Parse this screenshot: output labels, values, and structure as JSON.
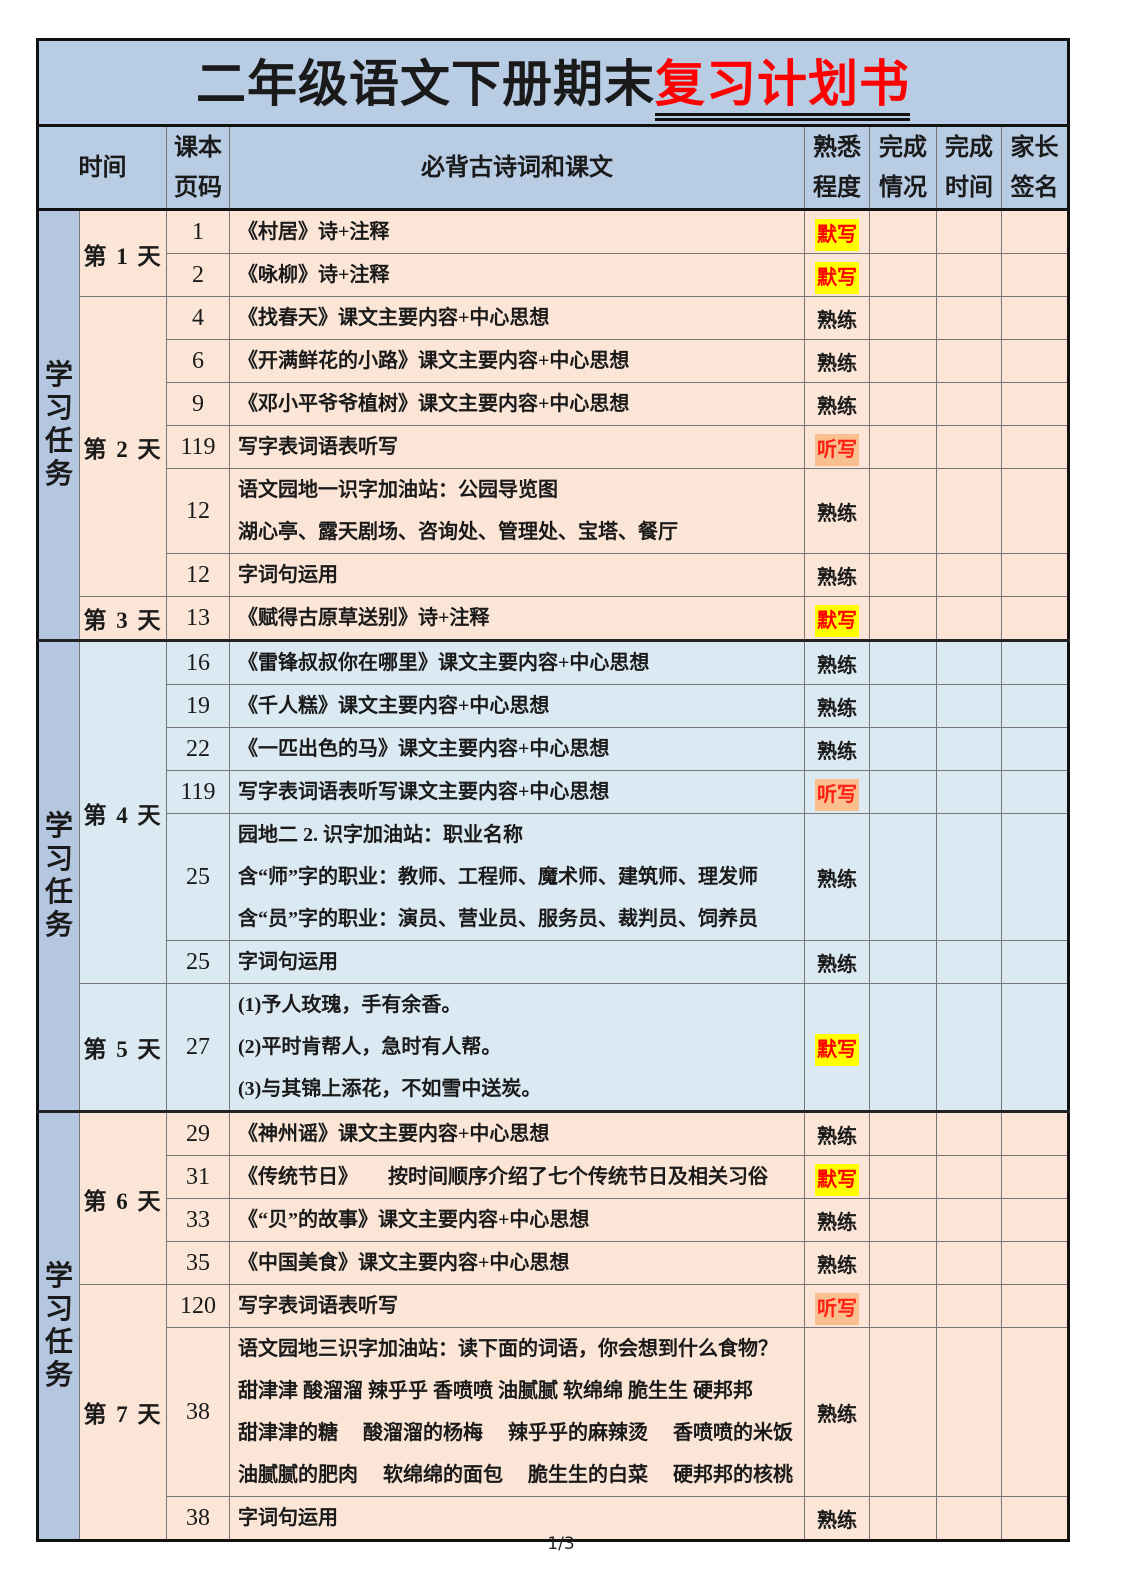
{
  "title": {
    "black": "二年级语文下册期末",
    "red": "复习计划书"
  },
  "header": {
    "time": "时间",
    "book_page": "课本\n页码",
    "content": "必背古诗词和课文",
    "familiarity": "熟悉\n程度",
    "completion": "完成\n情况",
    "finish_time": "完成\n时间",
    "parent_sign": "家长\n签名"
  },
  "side_label": "学习任务",
  "footer": {
    "page_number": "1/3"
  },
  "colors": {
    "header_blue": "#b8cce4",
    "side_blue": "#b5c7e0",
    "row_peach": "#fbe5d6",
    "row_blue": "#dbe9f2",
    "highlight_yellow": "#ffff00",
    "highlight_orange": "#fabf8f",
    "accent_red": "#ff0000",
    "title_red": "#ff0000"
  },
  "sections": [
    {
      "theme": "peach",
      "groups": [
        {
          "day": "第 1 天",
          "rows": [
            {
              "page": "1",
              "lines": [
                "《村居》诗+注释"
              ],
              "status": "默写",
              "status_style": "yellow"
            },
            {
              "page": "2",
              "lines": [
                "《咏柳》诗+注释"
              ],
              "status": "默写",
              "status_style": "yellow"
            }
          ]
        },
        {
          "day": "第 2 天",
          "rows": [
            {
              "page": "4",
              "lines": [
                "《找春天》课文主要内容+中心思想"
              ],
              "status": "熟练",
              "status_style": "plain"
            },
            {
              "page": "6",
              "lines": [
                "《开满鲜花的小路》课文主要内容+中心思想"
              ],
              "status": "熟练",
              "status_style": "plain"
            },
            {
              "page": "9",
              "lines": [
                "《邓小平爷爷植树》课文主要内容+中心思想"
              ],
              "status": "熟练",
              "status_style": "plain"
            },
            {
              "page": "119",
              "lines": [
                "写字表词语表听写"
              ],
              "status": "听写",
              "status_style": "orange"
            },
            {
              "page": "12",
              "lines": [
                "语文园地一识字加油站：公园导览图",
                "湖心亭、露天剧场、咨询处、管理处、宝塔、餐厅"
              ],
              "status": "熟练",
              "status_style": "plain"
            },
            {
              "page": "12",
              "lines": [
                "字词句运用"
              ],
              "status": "熟练",
              "status_style": "plain"
            }
          ]
        },
        {
          "day": "第 3 天",
          "rows": [
            {
              "page": "13",
              "lines": [
                "《赋得古原草送别》诗+注释"
              ],
              "status": "默写",
              "status_style": "yellow"
            }
          ]
        }
      ]
    },
    {
      "theme": "blue",
      "groups": [
        {
          "day": "第 4 天",
          "rows": [
            {
              "page": "16",
              "lines": [
                "《雷锋叔叔你在哪里》课文主要内容+中心思想"
              ],
              "status": "熟练",
              "status_style": "plain"
            },
            {
              "page": "19",
              "lines": [
                "《千人糕》课文主要内容+中心思想"
              ],
              "status": "熟练",
              "status_style": "plain"
            },
            {
              "page": "22",
              "lines": [
                "《一匹出色的马》课文主要内容+中心思想"
              ],
              "status": "熟练",
              "status_style": "plain"
            },
            {
              "page": "119",
              "lines": [
                "写字表词语表听写课文主要内容+中心思想"
              ],
              "status": "听写",
              "status_style": "orange"
            },
            {
              "page": "25",
              "lines": [
                "园地二 2. 识字加油站：职业名称",
                "含“师”字的职业：教师、工程师、魔术师、建筑师、理发师",
                "含“员”字的职业：演员、营业员、服务员、裁判员、饲养员"
              ],
              "status": "熟练",
              "status_style": "plain"
            },
            {
              "page": "25",
              "lines": [
                "字词句运用"
              ],
              "status": "熟练",
              "status_style": "plain"
            }
          ]
        },
        {
          "day": "第 5 天",
          "rows": [
            {
              "page": "27",
              "lines": [
                "(1)予人玫瑰，手有余香。",
                "(2)平时肯帮人，急时有人帮。",
                "(3)与其锦上添花，不如雪中送炭。"
              ],
              "status": "默写",
              "status_style": "yellow"
            }
          ]
        }
      ]
    },
    {
      "theme": "peach",
      "groups": [
        {
          "day": "第 6 天",
          "rows": [
            {
              "page": "29",
              "lines": [
                "《神州谣》课文主要内容+中心思想"
              ],
              "status": "熟练",
              "status_style": "plain"
            },
            {
              "page": "31",
              "lines": [
                "《传统节日》　　按时间顺序介绍了七个传统节日及相关习俗"
              ],
              "status": "默写",
              "status_style": "yellow"
            },
            {
              "page": "33",
              "lines": [
                "《“贝”的故事》课文主要内容+中心思想"
              ],
              "status": "熟练",
              "status_style": "plain"
            },
            {
              "page": "35",
              "lines": [
                "《中国美食》课文主要内容+中心思想"
              ],
              "status": "熟练",
              "status_style": "plain"
            }
          ]
        },
        {
          "day": "第 7 天",
          "rows": [
            {
              "page": "120",
              "lines": [
                "写字表词语表听写"
              ],
              "status": "听写",
              "status_style": "orange"
            },
            {
              "page": "38",
              "lines": [
                "语文园地三识字加油站：读下面的词语，你会想到什么食物？",
                "甜津津 酸溜溜 辣乎乎 香喷喷 油腻腻 软绵绵 脆生生 硬邦邦",
                "甜津津的糖　 酸溜溜的杨梅　 辣乎乎的麻辣烫　 香喷喷的米饭",
                "油腻腻的肥肉　 软绵绵的面包　 脆生生的白菜　 硬邦邦的核桃"
              ],
              "status": "熟练",
              "status_style": "plain"
            },
            {
              "page": "38",
              "lines": [
                "字词句运用"
              ],
              "status": "熟练",
              "status_style": "plain"
            }
          ]
        }
      ]
    }
  ]
}
